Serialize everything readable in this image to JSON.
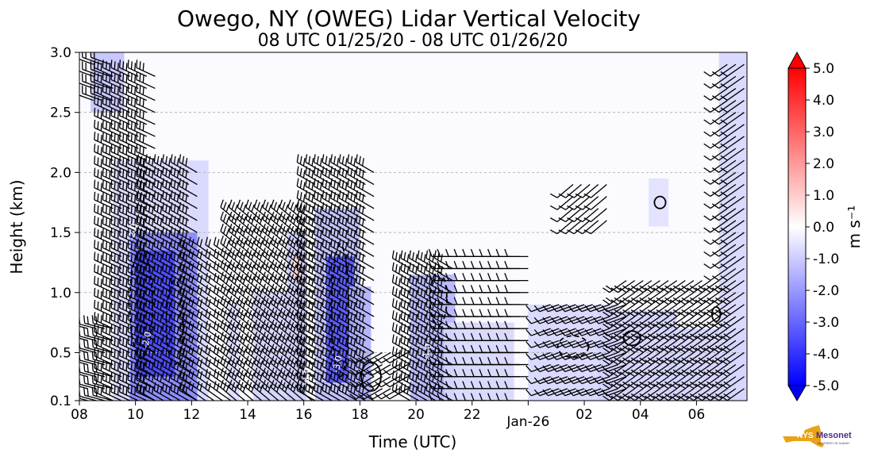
{
  "chart_data": {
    "type": "heatmap",
    "title": "Owego, NY (OWEG) Lidar Vertical Velocity",
    "subtitle": "08 UTC 01/25/20 - 08 UTC 01/26/20",
    "xlabel": "Time (UTC)",
    "ylabel": "Height (km)",
    "x_tick_labels": [
      "08",
      "10",
      "12",
      "14",
      "16",
      "18",
      "20",
      "22",
      "Jan-26",
      "02",
      "04",
      "06"
    ],
    "x_tick_hours": [
      0,
      2,
      4,
      6,
      8,
      10,
      12,
      14,
      16,
      18,
      20,
      22
    ],
    "xlim_hours": [
      0,
      23.8
    ],
    "y_tick_labels": [
      "0.1",
      "0.5",
      "1.0",
      "1.5",
      "2.0",
      "2.5",
      "3.0"
    ],
    "y_ticks": [
      0.1,
      0.5,
      1.0,
      1.5,
      2.0,
      2.5,
      3.0
    ],
    "ylim": [
      0.1,
      3.0
    ],
    "grid": "horizontal dashed",
    "colorbar": {
      "label": "m s⁻¹",
      "range": [
        -5.0,
        5.0
      ],
      "tick_labels": [
        "5.0",
        "4.0",
        "3.0",
        "2.0",
        "1.0",
        "0.0",
        "-1.0",
        "-2.0",
        "-3.0",
        "-4.0",
        "-5.0"
      ],
      "ticks": [
        5,
        4,
        3,
        2,
        1,
        0,
        -1,
        -2,
        -3,
        -4,
        -5
      ],
      "colors": [
        "#0000ff",
        "#ffffff",
        "#ff0000"
      ]
    },
    "regions": [
      {
        "t0": 0.0,
        "t1": 23.8,
        "h0": 0.1,
        "h1": 3.0,
        "v": -0.1
      },
      {
        "t0": 0.4,
        "t1": 1.6,
        "h0": 2.5,
        "h1": 3.0,
        "v": -1.2
      },
      {
        "t0": 1.2,
        "t1": 4.6,
        "h0": 0.1,
        "h1": 2.1,
        "v": -0.8
      },
      {
        "t0": 1.8,
        "t1": 4.2,
        "h0": 0.1,
        "h1": 1.5,
        "v": -2.4
      },
      {
        "t0": 2.0,
        "t1": 3.4,
        "h0": 0.3,
        "h1": 1.35,
        "v": -3.6
      },
      {
        "t0": 5.3,
        "t1": 5.7,
        "h0": 0.1,
        "h1": 0.9,
        "v": -0.7
      },
      {
        "t0": 6.2,
        "t1": 7.5,
        "h0": 0.1,
        "h1": 1.0,
        "v": -0.9
      },
      {
        "t0": 7.4,
        "t1": 8.1,
        "h0": 0.1,
        "h1": 1.5,
        "v": -1.0
      },
      {
        "t0": 8.4,
        "t1": 10.0,
        "h0": 0.1,
        "h1": 1.7,
        "v": -1.3
      },
      {
        "t0": 8.8,
        "t1": 9.8,
        "h0": 0.25,
        "h1": 1.3,
        "v": -3.4
      },
      {
        "t0": 9.6,
        "t1": 10.4,
        "h0": 0.1,
        "h1": 1.05,
        "v": -1.6
      },
      {
        "t0": 11.8,
        "t1": 13.4,
        "h0": 0.1,
        "h1": 1.15,
        "v": -1.5
      },
      {
        "t0": 13.0,
        "t1": 15.5,
        "h0": 0.1,
        "h1": 0.75,
        "v": -0.8
      },
      {
        "t0": 16.0,
        "t1": 19.2,
        "h0": 0.1,
        "h1": 0.9,
        "v": -0.8
      },
      {
        "t0": 18.5,
        "t1": 21.3,
        "h0": 0.1,
        "h1": 0.85,
        "v": -0.9
      },
      {
        "t0": 21.0,
        "t1": 23.8,
        "h0": 0.1,
        "h1": 0.7,
        "v": -0.9
      },
      {
        "t0": 22.8,
        "t1": 23.8,
        "h0": 0.1,
        "h1": 3.0,
        "v": -0.8
      },
      {
        "t0": 20.3,
        "t1": 21.0,
        "h0": 1.55,
        "h1": 1.95,
        "v": -0.6
      },
      {
        "t0": 7.6,
        "t1": 7.9,
        "h0": 1.1,
        "h1": 1.3,
        "v": 0.8
      }
    ],
    "barbs": {
      "hour_step": 0.3,
      "columns": [
        {
          "t0": 0.0,
          "t1": 1.3,
          "h0": 0.1,
          "h1": 0.7,
          "dir": 285,
          "flags": 2
        },
        {
          "t0": 0.5,
          "t1": 1.2,
          "h0": 2.6,
          "h1": 3.0,
          "dir": 290,
          "flags": 2
        },
        {
          "t0": 1.2,
          "t1": 2.7,
          "h0": 0.1,
          "h1": 2.8,
          "dir": 295,
          "flags": 3
        },
        {
          "t0": 2.7,
          "t1": 4.2,
          "h0": 0.1,
          "h1": 2.0,
          "dir": 300,
          "flags": 3
        },
        {
          "t0": 4.2,
          "t1": 5.6,
          "h0": 0.1,
          "h1": 1.3,
          "dir": 305,
          "flags": 2
        },
        {
          "t0": 5.6,
          "t1": 8.4,
          "h0": 0.1,
          "h1": 1.6,
          "dir": 310,
          "flags": 3
        },
        {
          "t0": 8.4,
          "t1": 10.5,
          "h0": 0.1,
          "h1": 2.0,
          "dir": 300,
          "flags": 3
        },
        {
          "t0": 10.5,
          "t1": 11.8,
          "h0": 0.1,
          "h1": 0.5,
          "dir": 240,
          "flags": 1
        },
        {
          "t0": 11.8,
          "t1": 13.3,
          "h0": 0.1,
          "h1": 1.2,
          "dir": 300,
          "flags": 3
        },
        {
          "t0": 13.3,
          "t1": 16.0,
          "h0": 0.1,
          "h1": 1.3,
          "dir": 270,
          "flags": 1
        },
        {
          "t0": 16.8,
          "t1": 19.5,
          "h0": 0.1,
          "h1": 0.9,
          "dir": 250,
          "flags": 1
        },
        {
          "t0": 17.6,
          "t1": 19.0,
          "h0": 1.6,
          "h1": 1.9,
          "dir": 230,
          "flags": 1
        },
        {
          "t0": 19.5,
          "t1": 23.8,
          "h0": 0.1,
          "h1": 1.1,
          "dir": 235,
          "flags": 2
        },
        {
          "t0": 23.1,
          "t1": 23.8,
          "h0": 1.2,
          "h1": 2.9,
          "dir": 235,
          "flags": 1
        }
      ]
    },
    "contours": [
      {
        "t": 2.2,
        "h": 0.9,
        "rt": 0.4,
        "rh": 0.45,
        "dash": true
      },
      {
        "t": 3.4,
        "h": 0.75,
        "rt": 0.3,
        "rh": 0.35,
        "dash": true
      },
      {
        "t": 9.3,
        "h": 0.85,
        "rt": 0.3,
        "rh": 0.55,
        "dash": true
      },
      {
        "t": 10.4,
        "h": 0.3,
        "rt": 0.35,
        "rh": 0.12,
        "dash": false
      },
      {
        "t": 12.8,
        "h": 0.95,
        "rt": 0.3,
        "rh": 0.22,
        "dash": true
      },
      {
        "t": 17.6,
        "h": 0.55,
        "rt": 0.55,
        "rh": 0.09,
        "dash": true
      },
      {
        "t": 19.7,
        "h": 0.62,
        "rt": 0.3,
        "rh": 0.06,
        "dash": false
      },
      {
        "t": 20.7,
        "h": 1.75,
        "rt": 0.2,
        "rh": 0.05,
        "dash": false
      },
      {
        "t": 22.7,
        "h": 0.82,
        "rt": 0.15,
        "rh": 0.06,
        "dash": false
      }
    ],
    "contour_labels": [
      {
        "t": 2.0,
        "h": 1.5,
        "text": "-2.0"
      },
      {
        "t": 2.5,
        "h": 0.6,
        "text": "-2.0"
      },
      {
        "t": 9.3,
        "h": 0.4,
        "text": "-3.0"
      },
      {
        "t": 8.2,
        "h": 0.3,
        "text": "-1.0"
      },
      {
        "t": 12.5,
        "h": 0.5,
        "text": "-1.0"
      }
    ]
  },
  "logo": {
    "text": "NYS",
    "word": "Mesonet",
    "sub": "UNIVERSITY AT ALBANY",
    "accent": "#e8a317",
    "brand": "#4b2e83"
  }
}
